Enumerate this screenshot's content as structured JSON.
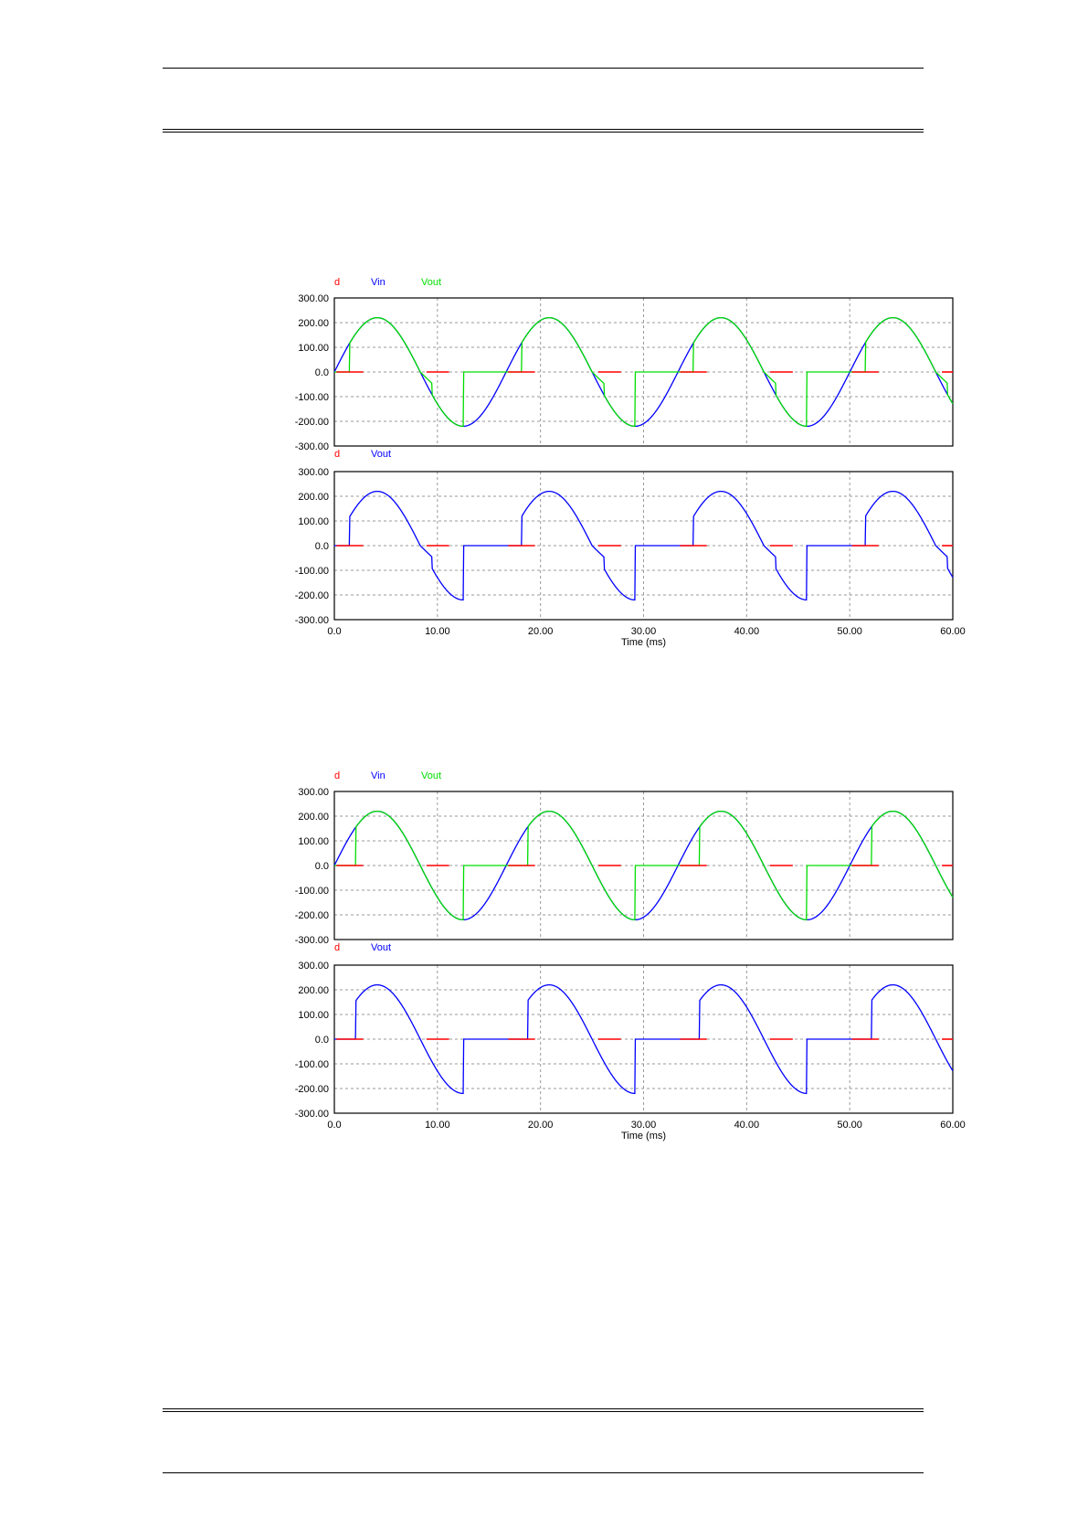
{
  "chart_data": [
    {
      "type": "line",
      "xlabel": "Time (ms)",
      "xlim": [
        0,
        60
      ],
      "xticks": [
        "0.0",
        "10.00",
        "20.00",
        "30.00",
        "40.00",
        "50.00",
        "60.00"
      ],
      "grid": true,
      "panels": [
        {
          "legend": [
            {
              "name": "d",
              "color": "#ff0000"
            },
            {
              "name": "Vin",
              "color": "#0000ff"
            },
            {
              "name": "Vout",
              "color": "#00dd00"
            }
          ],
          "ylim": [
            -300,
            300
          ],
          "yticks": [
            "300.00",
            "200.00",
            "100.00",
            "0.0",
            "-100.00",
            "-200.00",
            "-300.00"
          ],
          "series": [
            {
              "name": "Vin",
              "color": "#0000ff",
              "kind": "sine",
              "amplitude": 220,
              "period_ms": 16.67
            },
            {
              "name": "Vout",
              "color": "#00dd00",
              "kind": "controlled",
              "amplitude": 220,
              "period_ms": 16.67,
              "fire_delay_ms": 1.5,
              "cutoff_delay_ms": 1.15
            },
            {
              "name": "d",
              "color": "#ff0000",
              "kind": "gate",
              "pulse_width_ms": 2.3,
              "level": 0
            }
          ]
        },
        {
          "legend": [
            {
              "name": "d",
              "color": "#ff0000"
            },
            {
              "name": "Vout",
              "color": "#0000ff"
            }
          ],
          "ylim": [
            -300,
            300
          ],
          "yticks": [
            "300.00",
            "200.00",
            "100.00",
            "0.0",
            "-100.00",
            "-200.00",
            "-300.00"
          ],
          "series": [
            {
              "name": "Vout",
              "color": "#0000ff",
              "kind": "controlled",
              "amplitude": 220,
              "period_ms": 16.67,
              "fire_delay_ms": 1.5,
              "cutoff_delay_ms": 1.15
            },
            {
              "name": "d",
              "color": "#ff0000",
              "kind": "gate",
              "pulse_width_ms": 2.3,
              "level": 0
            }
          ]
        }
      ]
    },
    {
      "type": "line",
      "xlabel": "Time (ms)",
      "xlim": [
        0,
        60
      ],
      "xticks": [
        "0.0",
        "10.00",
        "20.00",
        "30.00",
        "40.00",
        "50.00",
        "60.00"
      ],
      "grid": true,
      "panels": [
        {
          "legend": [
            {
              "name": "d",
              "color": "#ff0000"
            },
            {
              "name": "Vin",
              "color": "#0000ff"
            },
            {
              "name": "Vout",
              "color": "#00dd00"
            }
          ],
          "ylim": [
            -300,
            300
          ],
          "yticks": [
            "300.00",
            "200.00",
            "100.00",
            "0.0",
            "-100.00",
            "-200.00",
            "-300.00"
          ],
          "series": [
            {
              "name": "Vin",
              "color": "#0000ff",
              "kind": "sine",
              "amplitude": 220,
              "period_ms": 16.67
            },
            {
              "name": "Vout",
              "color": "#00dd00",
              "kind": "controlled",
              "amplitude": 220,
              "period_ms": 16.67,
              "fire_delay_ms": 2.1,
              "cutoff_delay_ms": 0
            },
            {
              "name": "d",
              "color": "#ff0000",
              "kind": "gate",
              "pulse_width_ms": 2.3,
              "level": 0
            }
          ]
        },
        {
          "legend": [
            {
              "name": "d",
              "color": "#ff0000"
            },
            {
              "name": "Vout",
              "color": "#0000ff"
            }
          ],
          "ylim": [
            -300,
            300
          ],
          "yticks": [
            "300.00",
            "200.00",
            "100.00",
            "0.0",
            "-100.00",
            "-200.00",
            "-300.00"
          ],
          "series": [
            {
              "name": "Vout",
              "color": "#0000ff",
              "kind": "controlled",
              "amplitude": 220,
              "period_ms": 16.67,
              "fire_delay_ms": 2.1,
              "cutoff_delay_ms": 0
            },
            {
              "name": "d",
              "color": "#ff0000",
              "kind": "gate",
              "pulse_width_ms": 2.3,
              "level": 0
            }
          ]
        }
      ]
    }
  ]
}
